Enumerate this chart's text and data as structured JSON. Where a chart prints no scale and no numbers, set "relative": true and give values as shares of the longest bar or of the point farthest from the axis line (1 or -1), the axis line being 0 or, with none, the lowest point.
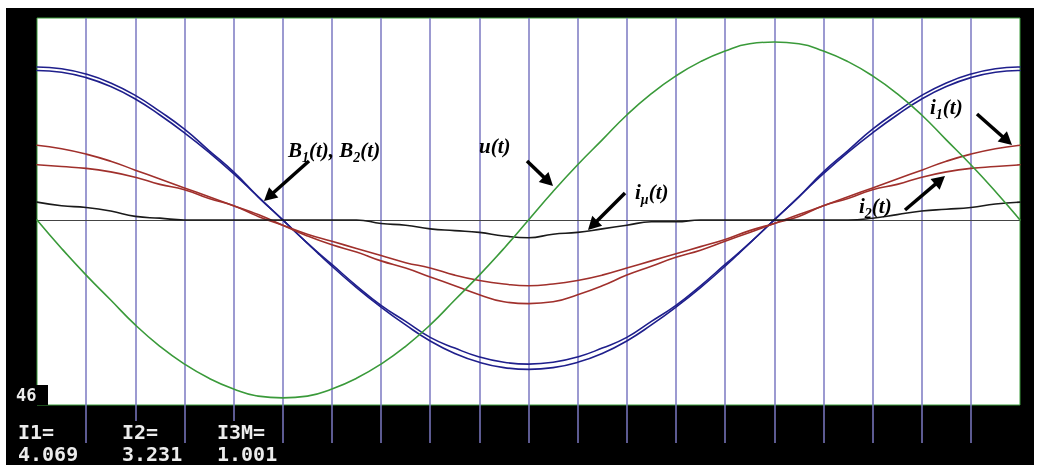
{
  "chart_data": {
    "type": "line",
    "relative": true,
    "grid": "x",
    "categories": [
      null,
      null,
      null,
      null,
      null,
      null,
      null,
      null,
      null,
      null,
      null,
      null,
      null,
      null,
      null,
      null,
      null,
      null,
      null,
      null,
      null,
      null,
      null,
      null,
      null,
      null,
      null,
      null,
      null,
      null,
      null,
      null,
      null,
      null,
      null,
      null,
      null,
      null,
      null,
      null,
      null
    ],
    "series": [
      {
        "color": "#1f1f8c",
        "values": [
          0.86,
          0.85,
          0.82,
          0.77,
          0.7,
          0.61,
          0.51,
          0.39,
          0.27,
          0.13,
          0,
          -0.13,
          -0.26,
          -0.38,
          -0.49,
          -0.59,
          -0.68,
          -0.75,
          -0.8,
          -0.83,
          -0.84,
          -0.83,
          -0.8,
          -0.75,
          -0.68,
          -0.59,
          -0.49,
          -0.38,
          -0.26,
          -0.13,
          0,
          0.13,
          0.27,
          0.39,
          0.51,
          0.61,
          0.7,
          0.77,
          0.82,
          0.85,
          0.86
        ]
      },
      {
        "color": "#1f1f8c",
        "values": [
          0.84,
          0.83,
          0.8,
          0.75,
          0.68,
          0.59,
          0.49,
          0.38,
          0.26,
          0.13,
          0,
          -0.13,
          -0.25,
          -0.37,
          -0.48,
          -0.57,
          -0.66,
          -0.72,
          -0.77,
          -0.8,
          -0.81,
          -0.8,
          -0.77,
          -0.72,
          -0.66,
          -0.57,
          -0.48,
          -0.37,
          -0.25,
          -0.13,
          0,
          0.13,
          0.26,
          0.38,
          0.49,
          0.59,
          0.68,
          0.75,
          0.8,
          0.83,
          0.84
        ]
      },
      {
        "color": "#a0302c",
        "values": [
          0.42,
          0.4,
          0.37,
          0.33,
          0.28,
          0.23,
          0.18,
          0.13,
          0.08,
          0.03,
          -0.03,
          -0.09,
          -0.14,
          -0.18,
          -0.23,
          -0.27,
          -0.32,
          -0.37,
          -0.42,
          -0.46,
          -0.47,
          -0.46,
          -0.42,
          -0.37,
          -0.31,
          -0.26,
          -0.21,
          -0.17,
          -0.12,
          -0.07,
          -0.02,
          0.03,
          0.08,
          0.13,
          0.18,
          0.23,
          0.28,
          0.33,
          0.37,
          0.4,
          0.42
        ]
      },
      {
        "color": "#a0302c",
        "values": [
          0.31,
          0.3,
          0.29,
          0.27,
          0.24,
          0.2,
          0.17,
          0.12,
          0.08,
          0.02,
          -0.03,
          -0.08,
          -0.12,
          -0.16,
          -0.2,
          -0.24,
          -0.27,
          -0.31,
          -0.34,
          -0.36,
          -0.37,
          -0.36,
          -0.34,
          -0.31,
          -0.27,
          -0.23,
          -0.19,
          -0.15,
          -0.11,
          -0.06,
          -0.02,
          0.02,
          0.08,
          0.12,
          0.17,
          0.2,
          0.24,
          0.27,
          0.29,
          0.3,
          0.31
        ]
      },
      {
        "color": "#1a1a1a",
        "values": [
          0.1,
          0.08,
          0.07,
          0.05,
          0.02,
          0.01,
          0,
          0,
          0,
          0,
          0,
          0,
          0,
          0,
          -0.02,
          -0.03,
          -0.05,
          -0.06,
          -0.07,
          -0.09,
          -0.1,
          -0.08,
          -0.07,
          -0.05,
          -0.03,
          -0.01,
          -0.01,
          0,
          0,
          0,
          0,
          0,
          0,
          0,
          0.01,
          0.03,
          0.05,
          0.06,
          0.07,
          0.09,
          0.1
        ]
      },
      {
        "color": "#3a9a3a",
        "values": [
          0,
          -0.16,
          -0.31,
          -0.45,
          -0.59,
          -0.71,
          -0.81,
          -0.89,
          -0.95,
          -0.99,
          -1,
          -0.99,
          -0.95,
          -0.89,
          -0.81,
          -0.71,
          -0.59,
          -0.45,
          -0.31,
          -0.16,
          0,
          0.16,
          0.31,
          0.45,
          0.59,
          0.71,
          0.81,
          0.89,
          0.95,
          0.99,
          1,
          0.99,
          0.95,
          0.89,
          0.81,
          0.71,
          0.59,
          0.45,
          0.31,
          0.16,
          0
        ]
      }
    ],
    "annotations": [
      "B$_{1}$(t), B$_{2}$(t)",
      "u(t)",
      "i$_{μ}$(t)",
      "i$_{1}$(t)",
      "i$_{2}$(t)",
      "46",
      "I1=\n4.069",
      "I2=\n3.231",
      "I3M=\n1.001"
    ]
  }
}
